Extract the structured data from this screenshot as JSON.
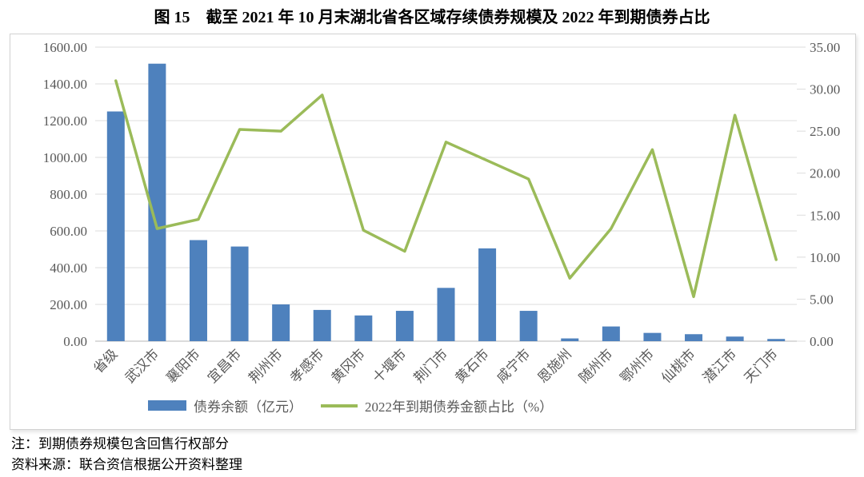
{
  "page": {
    "title": "图 15　截至 2021 年 10 月末湖北省各区域存续债券规模及 2022 年到期债券占比"
  },
  "notes": {
    "line1": "注：到期债券规模包含回售行权部分",
    "line2": "资料来源：联合资信根据公开资料整理"
  },
  "colors": {
    "bar": "#4E81BD",
    "line": "#9BBB59",
    "grid": "#DCDCDC",
    "axis_line": "#B7B7B7",
    "axis_text": "#595959"
  },
  "chart_data": {
    "type": "bar",
    "title": "截至2021年10月末湖北省各区域存续债券规模及2022年到期债券占比",
    "categories": [
      "省级",
      "武汉市",
      "襄阳市",
      "宜昌市",
      "荆州市",
      "孝感市",
      "黄冈市",
      "十堰市",
      "荆门市",
      "黄石市",
      "咸宁市",
      "恩施州",
      "随州市",
      "鄂州市",
      "仙桃市",
      "潜江市",
      "天门市"
    ],
    "series": [
      {
        "name": "债券余额（亿元）",
        "type": "bar",
        "axis": "left",
        "color": "#4E81BD",
        "values": [
          1250,
          1510,
          550,
          515,
          200,
          170,
          140,
          165,
          290,
          505,
          165,
          15,
          80,
          45,
          38,
          25,
          12
        ]
      },
      {
        "name": "2022年到期债券金额占比（%）",
        "type": "line",
        "axis": "right",
        "color": "#9BBB59",
        "values": [
          31.0,
          13.4,
          14.5,
          25.2,
          25.0,
          29.3,
          13.2,
          10.7,
          23.7,
          21.5,
          19.3,
          7.5,
          13.4,
          22.8,
          5.3,
          26.9,
          9.7
        ]
      }
    ],
    "left_axis": {
      "min": 0,
      "max": 1600,
      "step": 200,
      "tick_format": "0.00"
    },
    "right_axis": {
      "min": 0,
      "max": 35,
      "step": 5,
      "tick_format": "0.00"
    },
    "grid": true,
    "legend_position": "bottom"
  }
}
